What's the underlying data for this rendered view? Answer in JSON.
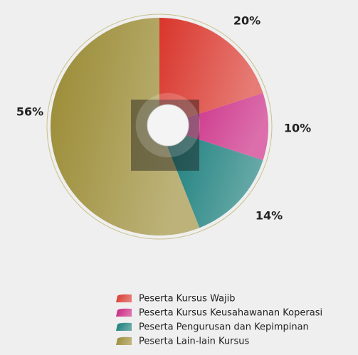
{
  "chart_data": {
    "type": "pie",
    "categories": [
      "Peserta Kursus Wajib",
      "Peserta Kursus Keusahawanan Koperasi",
      "Peserta Pengurusan dan Kepimpinan",
      "Peserta Lain-lain Kursus"
    ],
    "values": [
      20,
      10,
      14,
      56
    ],
    "value_labels": [
      "20%",
      "10%",
      "14%",
      "56%"
    ],
    "colors": [
      "#d9352b",
      "#c8207e",
      "#137a78",
      "#998a32"
    ],
    "legend": "bottom"
  }
}
